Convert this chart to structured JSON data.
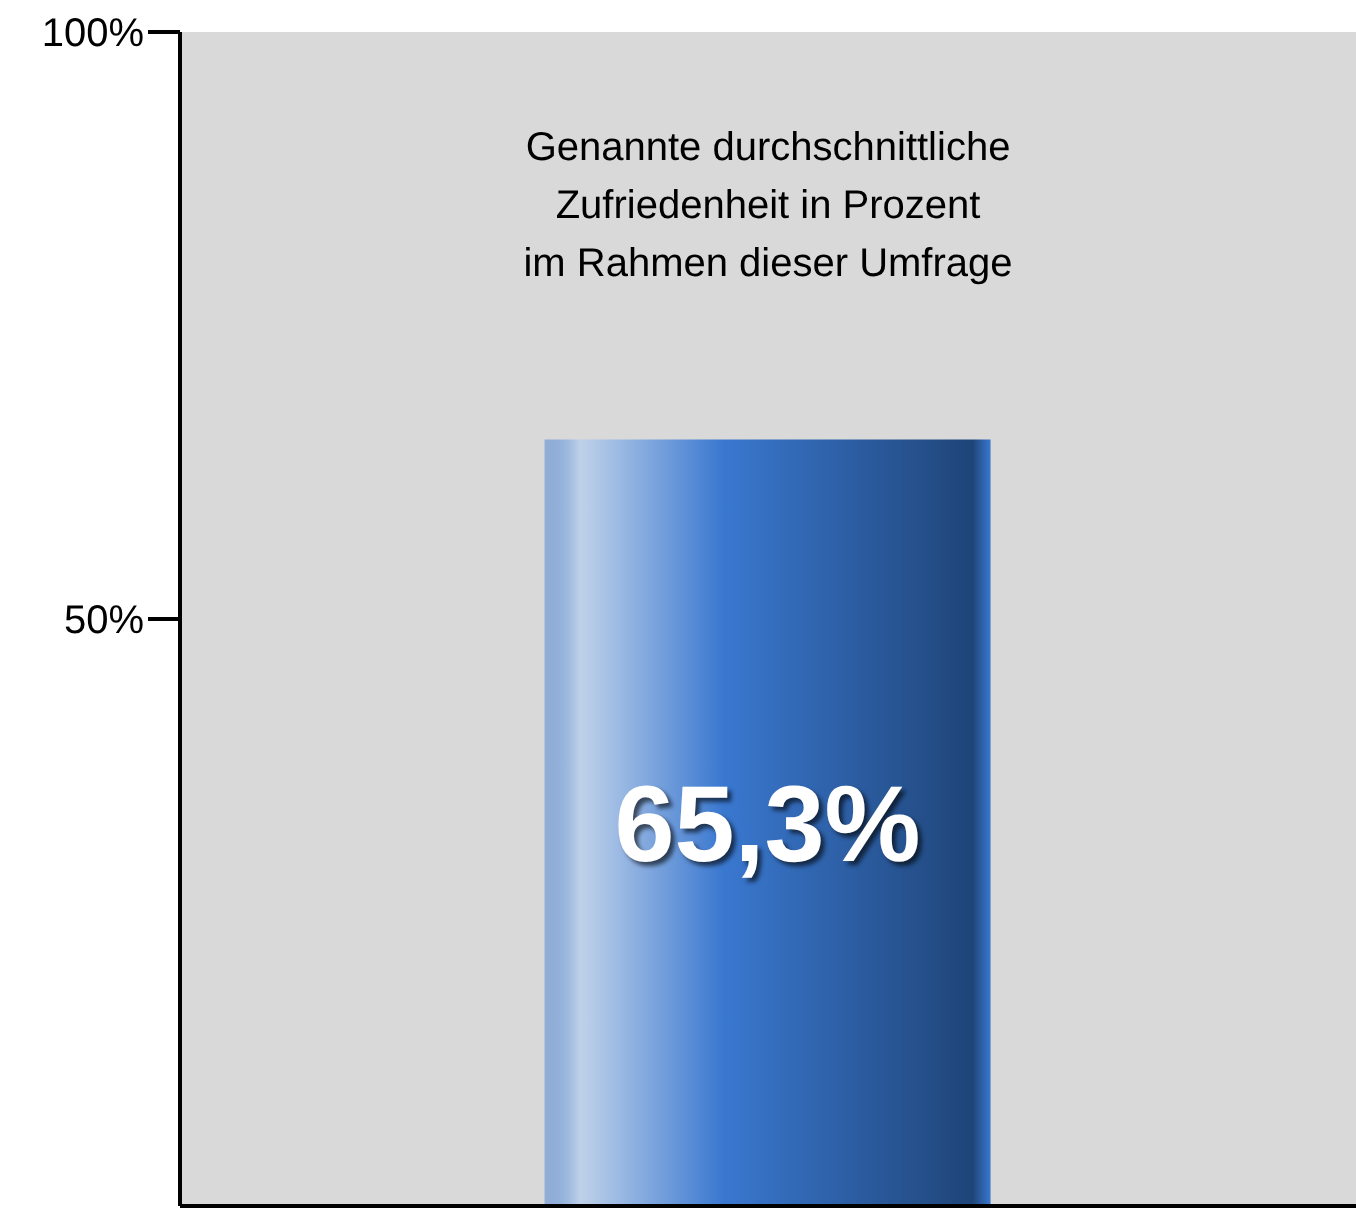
{
  "chart_data": {
    "type": "bar",
    "title": "Genannte durchschnittliche\nZufriedenheit in Prozent\nim Rahmen dieser Umfrage",
    "categories": [
      null
    ],
    "values": [
      65.3
    ],
    "color": "#3a78d0",
    "value_labels": [
      "65,3%"
    ],
    "ylim": [
      0,
      100
    ],
    "yticks": [
      {
        "value": 50,
        "label": "50%"
      },
      {
        "value": 100,
        "label": "100%"
      }
    ],
    "legend": false
  }
}
